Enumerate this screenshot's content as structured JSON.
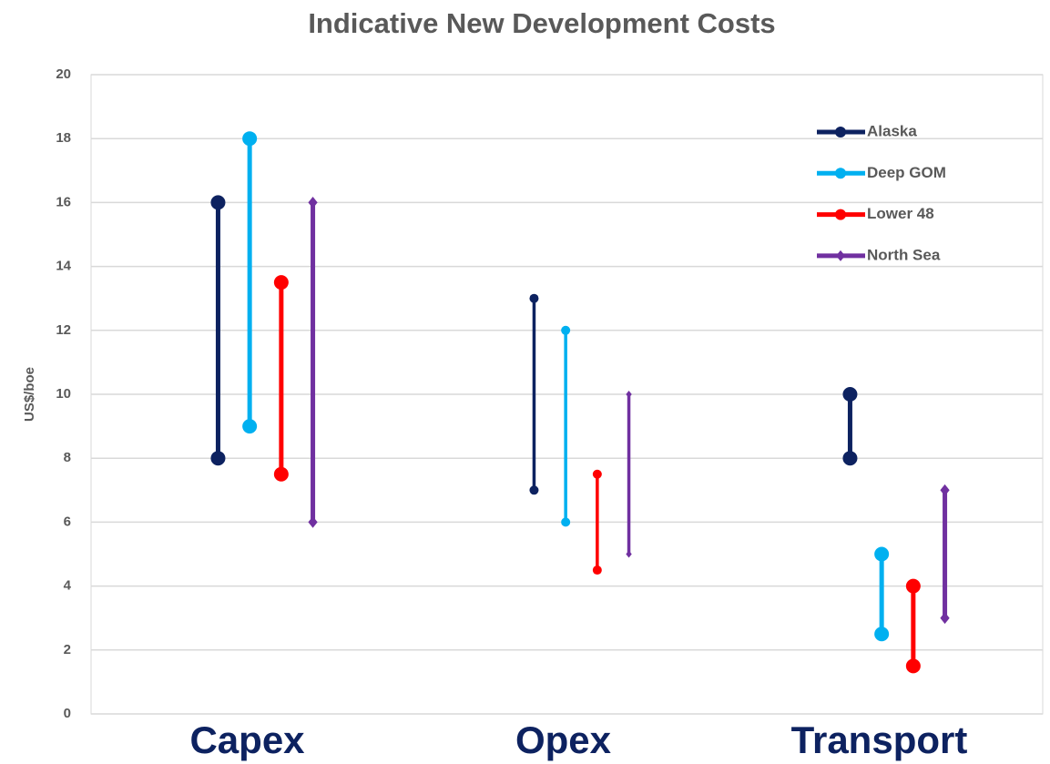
{
  "chart_data": {
    "type": "range",
    "title": "Indicative New Development Costs",
    "y_label": "US$/boe",
    "categories": [
      "Capex",
      "Opex",
      "Transport"
    ],
    "series": [
      {
        "name": "Alaska",
        "color": "#0d2260",
        "marker": "circle",
        "low": [
          8,
          7,
          8
        ],
        "high": [
          16,
          13,
          10
        ]
      },
      {
        "name": "Deep GOM",
        "color": "#00b0f0",
        "marker": "circle",
        "low": [
          9,
          6,
          2.5
        ],
        "high": [
          18,
          12,
          5
        ]
      },
      {
        "name": "Lower 48",
        "color": "#ff0000",
        "marker": "circle",
        "low": [
          7.5,
          4.5,
          1.5
        ],
        "high": [
          13.5,
          7.5,
          4
        ]
      },
      {
        "name": "North Sea",
        "color": "#7030a0",
        "marker": "diamond",
        "low": [
          6,
          5,
          3
        ],
        "high": [
          16,
          10,
          7
        ]
      }
    ],
    "ylim": [
      0,
      20
    ],
    "yticks": [
      0,
      2,
      4,
      6,
      8,
      10,
      12,
      14,
      16,
      18,
      20
    ],
    "grid": true,
    "legend": "upper right"
  }
}
